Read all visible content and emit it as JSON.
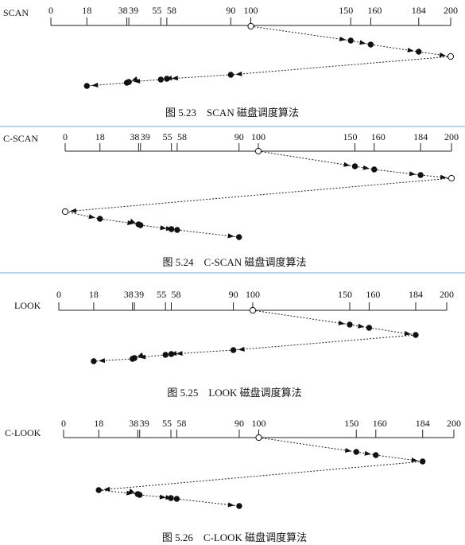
{
  "scale_labels": [
    "0",
    "18",
    "38",
    "39",
    "55",
    "58",
    "90",
    "100",
    "150",
    "160",
    "184",
    "200"
  ],
  "panels": [
    {
      "algorithm": "SCAN",
      "caption": "图 5.23　SCAN 磁盘调度算法",
      "path": [
        100,
        150,
        160,
        184,
        200,
        90,
        58,
        55,
        39,
        38,
        18
      ]
    },
    {
      "algorithm": "C-SCAN",
      "caption": "图 5.24　C-SCAN 磁盘调度算法",
      "path": [
        100,
        150,
        160,
        184,
        200,
        0,
        18,
        38,
        39,
        55,
        58,
        90
      ]
    },
    {
      "algorithm": "LOOK",
      "caption": "图 5.25　LOOK 磁盘调度算法",
      "path": [
        100,
        150,
        160,
        184,
        90,
        58,
        55,
        39,
        38,
        18
      ]
    },
    {
      "algorithm": "C-LOOK",
      "caption": "图 5.26　C-LOOK 磁盘调度算法",
      "path": [
        100,
        150,
        160,
        184,
        18,
        38,
        39,
        55,
        58,
        90
      ]
    }
  ]
}
